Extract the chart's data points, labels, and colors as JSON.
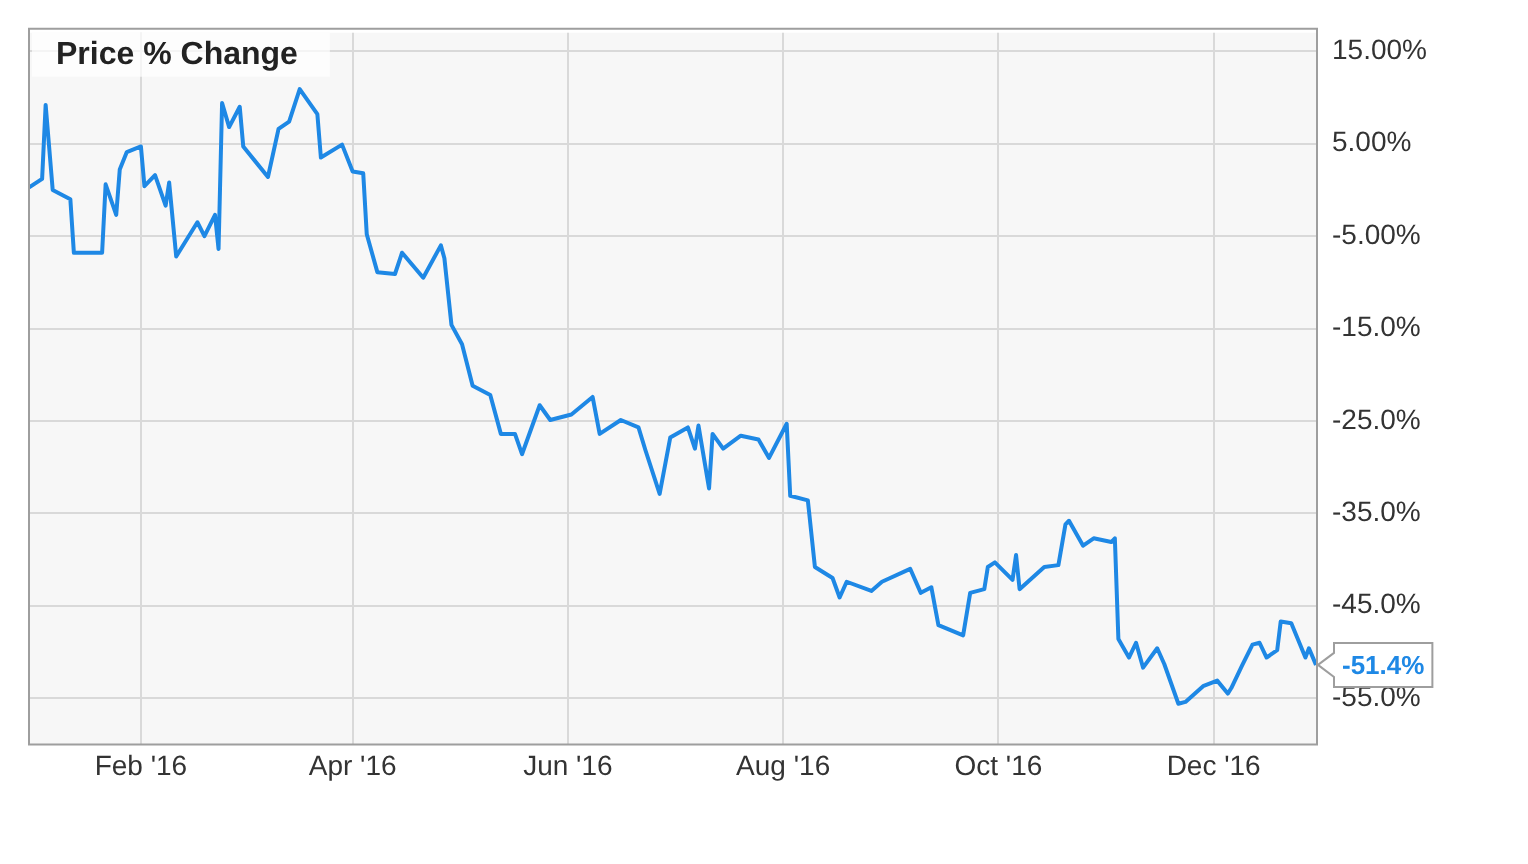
{
  "chart_data": {
    "type": "line",
    "title": "Price % Change",
    "x": [
      "2015-12-31",
      "2016-01-04",
      "2016-01-05",
      "2016-01-07",
      "2016-01-12",
      "2016-01-13",
      "2016-01-21",
      "2016-01-22",
      "2016-01-25",
      "2016-01-26",
      "2016-01-28",
      "2016-02-01",
      "2016-02-02",
      "2016-02-05",
      "2016-02-08",
      "2016-02-09",
      "2016-02-11",
      "2016-02-17",
      "2016-02-19",
      "2016-02-22",
      "2016-02-23",
      "2016-02-24",
      "2016-02-26",
      "2016-02-29",
      "2016-03-01",
      "2016-03-08",
      "2016-03-11",
      "2016-03-14",
      "2016-03-17",
      "2016-03-22",
      "2016-03-23",
      "2016-03-29",
      "2016-04-01",
      "2016-04-04",
      "2016-04-05",
      "2016-04-08",
      "2016-04-13",
      "2016-04-15",
      "2016-04-21",
      "2016-04-26",
      "2016-04-27",
      "2016-04-29",
      "2016-05-02",
      "2016-05-05",
      "2016-05-10",
      "2016-05-13",
      "2016-05-17",
      "2016-05-19",
      "2016-05-24",
      "2016-05-27",
      "2016-06-02",
      "2016-06-08",
      "2016-06-10",
      "2016-06-16",
      "2016-06-21",
      "2016-06-23",
      "2016-06-27",
      "2016-06-30",
      "2016-07-05",
      "2016-07-07",
      "2016-07-08",
      "2016-07-11",
      "2016-07-12",
      "2016-07-15",
      "2016-07-20",
      "2016-07-25",
      "2016-07-28",
      "2016-08-02",
      "2016-08-03",
      "2016-08-08",
      "2016-08-10",
      "2016-08-15",
      "2016-08-17",
      "2016-08-19",
      "2016-08-26",
      "2016-08-29",
      "2016-09-06",
      "2016-09-09",
      "2016-09-12",
      "2016-09-14",
      "2016-09-21",
      "2016-09-23",
      "2016-09-27",
      "2016-09-28",
      "2016-09-30",
      "2016-10-05",
      "2016-10-06",
      "2016-10-07",
      "2016-10-14",
      "2016-10-18",
      "2016-10-20",
      "2016-10-21",
      "2016-10-25",
      "2016-10-28",
      "2016-11-02",
      "2016-11-03",
      "2016-11-04",
      "2016-11-07",
      "2016-11-09",
      "2016-11-11",
      "2016-11-15",
      "2016-11-17",
      "2016-11-21",
      "2016-11-23",
      "2016-11-28",
      "2016-12-02",
      "2016-12-05",
      "2016-12-06",
      "2016-12-09",
      "2016-12-12",
      "2016-12-14",
      "2016-12-16",
      "2016-12-19",
      "2016-12-20",
      "2016-12-23",
      "2016-12-27",
      "2016-12-28",
      "2016-12-30"
    ],
    "series": [
      {
        "color": "#1e88e5",
        "values": [
          0.2,
          1.2,
          9.2,
          0,
          -1.0,
          -6.8,
          -6.8,
          0.6,
          -2.7,
          2.2,
          4.1,
          4.7,
          0.4,
          1.6,
          -1.7,
          0.8,
          -7.2,
          -3.5,
          -5.0,
          -2.7,
          -6.4,
          9.4,
          6.8,
          9.0,
          4.7,
          1.4,
          6.6,
          7.4,
          10.9,
          8.2,
          3.5,
          4.9,
          2.0,
          1.8,
          -4.8,
          -8.9,
          -9.1,
          -6.8,
          -9.5,
          -6.0,
          -7.4,
          -14.6,
          -16.7,
          -21.2,
          -22.2,
          -26.4,
          -26.4,
          -28.6,
          -23.3,
          -24.9,
          -24.3,
          -22.4,
          -26.4,
          -24.9,
          -25.7,
          -28.2,
          -32.9,
          -26.8,
          -25.7,
          -28.0,
          -25.5,
          -32.3,
          -26.4,
          -28.0,
          -26.6,
          -27.0,
          -29.0,
          -25.3,
          -33.1,
          -33.6,
          -40.8,
          -42.0,
          -44.1,
          -42.4,
          -43.4,
          -42.4,
          -41.0,
          -43.6,
          -43.0,
          -47.1,
          -48.2,
          -43.6,
          -43.2,
          -40.8,
          -40.3,
          -42.2,
          -39.5,
          -43.2,
          -40.8,
          -40.6,
          -36.2,
          -35.8,
          -38.5,
          -37.7,
          -38.1,
          -37.7,
          -48.6,
          -50.6,
          -49.0,
          -51.7,
          -49.6,
          -51.3,
          -55.6,
          -55.4,
          -53.7,
          -53.1,
          -54.5,
          -53.9,
          -51.5,
          -49.2,
          -49.0,
          -50.6,
          -49.8,
          -46.7,
          -46.9,
          -50.6,
          -49.6,
          -51.4
        ]
      }
    ],
    "xlim": [
      "2015-12-31",
      "2016-12-30"
    ],
    "xticks": [
      {
        "value": "2016-02-01",
        "label": "Feb '16"
      },
      {
        "value": "2016-04-01",
        "label": "Apr '16"
      },
      {
        "value": "2016-06-01",
        "label": "Jun '16"
      },
      {
        "value": "2016-08-01",
        "label": "Aug '16"
      },
      {
        "value": "2016-10-01",
        "label": "Oct '16"
      },
      {
        "value": "2016-12-01",
        "label": "Dec '16"
      }
    ],
    "ylim": [
      -60,
      17
    ],
    "yticks": [
      {
        "value": 15,
        "label": "15.00%"
      },
      {
        "value": 5,
        "label": "5.00%"
      },
      {
        "value": -5,
        "label": "-5.00%"
      },
      {
        "value": -15,
        "label": "-15.0%"
      },
      {
        "value": -25,
        "label": "-25.0%"
      },
      {
        "value": -35,
        "label": "-35.0%"
      },
      {
        "value": -45,
        "label": "-45.0%"
      },
      {
        "value": -55,
        "label": "-55.0%"
      }
    ],
    "annotations": [
      {
        "text": "-51.4%",
        "x": "2016-12-30",
        "y": -51.4
      }
    ],
    "grid": true,
    "legend": false,
    "marker": "none",
    "line_style": "solid"
  }
}
